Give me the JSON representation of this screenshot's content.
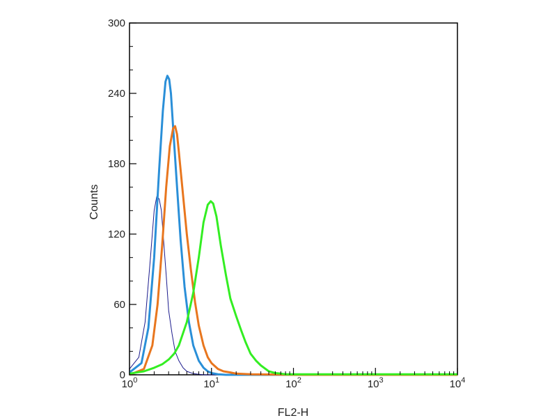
{
  "chart_data": {
    "type": "line",
    "title": "",
    "xlabel": "FL2-H",
    "ylabel": "Counts",
    "x_scale": "log",
    "xlim": [
      1,
      10000
    ],
    "ylim": [
      0,
      300
    ],
    "x_ticks": [
      {
        "base": "10",
        "exp": "0",
        "value": 1
      },
      {
        "base": "10",
        "exp": "1",
        "value": 10
      },
      {
        "base": "10",
        "exp": "2",
        "value": 100
      },
      {
        "base": "10",
        "exp": "3",
        "value": 1000
      },
      {
        "base": "10",
        "exp": "4",
        "value": 10000
      }
    ],
    "y_ticks": [
      "0",
      "60",
      "120",
      "180",
      "240",
      "300"
    ],
    "grid": false,
    "legend": "none",
    "series": [
      {
        "color": "#1a1a8c",
        "width": 1,
        "x": [
          1.0,
          1.3,
          1.55,
          1.8,
          2.0,
          2.15,
          2.3,
          2.45,
          2.6,
          2.8,
          3.0,
          3.3,
          3.6,
          4.0,
          4.5,
          5.0,
          6.0,
          7.0,
          8.0,
          10,
          20,
          100,
          1000,
          10000
        ],
        "y": [
          5,
          15,
          45,
          100,
          140,
          152,
          150,
          140,
          115,
          85,
          55,
          35,
          20,
          12,
          6,
          3,
          1,
          0.5,
          0,
          0,
          0,
          0,
          0,
          0
        ]
      },
      {
        "color": "#2a8fd8",
        "width": 3,
        "x": [
          1.0,
          1.4,
          1.7,
          2.0,
          2.3,
          2.55,
          2.75,
          2.9,
          3.05,
          3.2,
          3.45,
          3.8,
          4.2,
          4.7,
          5.3,
          6.0,
          7.0,
          8.0,
          9.0,
          10,
          12,
          15,
          20,
          100,
          1000,
          10000
        ],
        "y": [
          2,
          10,
          40,
          100,
          175,
          225,
          250,
          255,
          252,
          240,
          205,
          160,
          115,
          75,
          45,
          25,
          12,
          6,
          3,
          1.5,
          0.5,
          0,
          0,
          0,
          0,
          0
        ]
      },
      {
        "color": "#e8761e",
        "width": 3,
        "x": [
          1.0,
          1.5,
          1.9,
          2.2,
          2.5,
          2.8,
          3.1,
          3.4,
          3.6,
          3.8,
          4.0,
          4.4,
          5.0,
          5.6,
          6.3,
          7.0,
          8.0,
          9.0,
          10,
          12,
          14,
          17,
          20,
          30,
          100,
          1000,
          10000
        ],
        "y": [
          0,
          5,
          25,
          60,
          110,
          160,
          195,
          210,
          212,
          205,
          190,
          160,
          120,
          90,
          62,
          42,
          25,
          15,
          10,
          5,
          3,
          2,
          1,
          0.5,
          0,
          0,
          0
        ]
      },
      {
        "color": "#33ee22",
        "width": 3,
        "x": [
          1.0,
          1.5,
          2.0,
          2.5,
          3.0,
          3.5,
          4.0,
          5.0,
          6.0,
          7.0,
          8.0,
          9.0,
          9.8,
          10.5,
          11.5,
          13,
          15,
          17,
          20,
          23,
          26,
          30,
          35,
          40,
          50,
          60,
          70,
          80,
          100,
          1000,
          10000
        ],
        "y": [
          1,
          3,
          6,
          9,
          13,
          18,
          25,
          45,
          70,
          100,
          130,
          145,
          148,
          146,
          135,
          110,
          85,
          65,
          50,
          38,
          28,
          18,
          12,
          8,
          3,
          1.5,
          1,
          0.5,
          0.5,
          0.5,
          0.5
        ]
      }
    ]
  }
}
